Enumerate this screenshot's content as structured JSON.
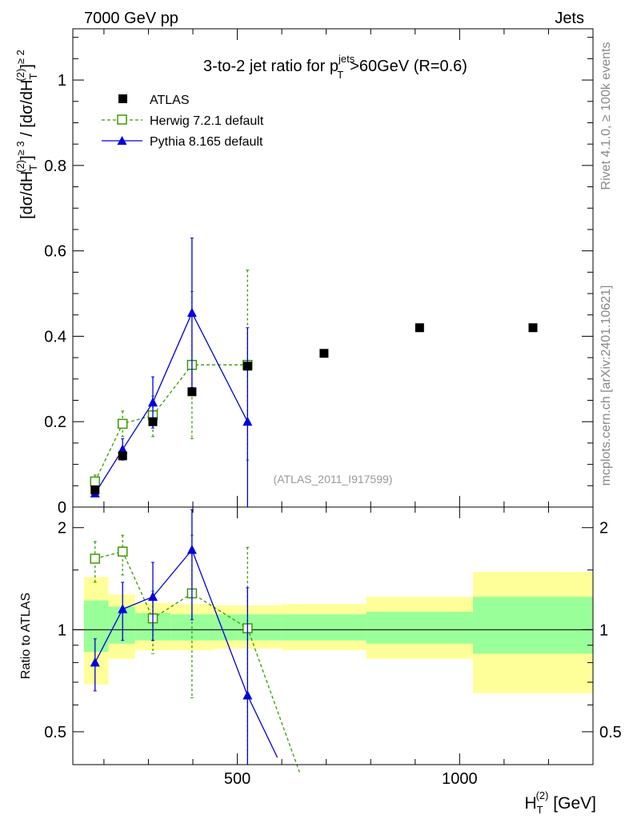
{
  "header": {
    "left": "7000 GeV pp",
    "right": "Jets"
  },
  "side_labels": {
    "rivet": "Rivet 4.1.0, ≥ 100k events",
    "mcplots": "mcplots.cern.ch [arXiv:2401.10621]"
  },
  "chart_data": [
    {
      "type": "scatter",
      "name": "main",
      "title": "3-to-2 jet ratio for p_T^jets > 60GeV (R=0.6)",
      "title_parts": {
        "a": "3-to-2 jet ratio for p",
        "sup": "jets",
        "sub": "T",
        "b": ">60GeV (R=0.6)"
      },
      "ylabel": "[dσ/dH_T^(2)]^≥3 / [dσ/dH_T^(2)]^≥2",
      "ylabel_parts": {
        "p1": "[dσ/dH",
        "sub": "T",
        "sup1": "(2)",
        "p2": "]",
        "sup2": "≥ 3",
        "p3": " / [dσ/dH",
        "p4": "]",
        "sup3": "≥ 2"
      },
      "xlim": [
        130,
        1300
      ],
      "ylim": [
        0,
        1.12
      ],
      "yticks": [
        0,
        0.2,
        0.4,
        0.6,
        0.8,
        1
      ],
      "ytick_labels": [
        "0",
        "0.2",
        "0.4",
        "0.6",
        "0.8",
        "1"
      ],
      "legend_position": "top-left",
      "watermark": "(ATLAS_2011_I917599)",
      "series": [
        {
          "name": "ATLAS",
          "style": "data",
          "color": "#000000",
          "marker": "filled-square",
          "points": [
            {
              "x": 180,
              "y": 0.04
            },
            {
              "x": 242,
              "y": 0.12
            },
            {
              "x": 310,
              "y": 0.2
            },
            {
              "x": 398,
              "y": 0.27
            },
            {
              "x": 523,
              "y": 0.33
            },
            {
              "x": 695,
              "y": 0.36
            },
            {
              "x": 910,
              "y": 0.42
            },
            {
              "x": 1165,
              "y": 0.42
            }
          ]
        },
        {
          "name": "Herwig 7.2.1 default",
          "style": "dashed",
          "color": "#3a9a00",
          "marker": "open-square",
          "points": [
            {
              "x": 180,
              "y": 0.06,
              "lo": 0.04,
              "hi": 0.075
            },
            {
              "x": 242,
              "y": 0.195,
              "lo": 0.165,
              "hi": 0.225
            },
            {
              "x": 310,
              "y": 0.215,
              "lo": 0.165,
              "hi": 0.26
            },
            {
              "x": 398,
              "y": 0.333,
              "lo": 0.16,
              "hi": 0.505
            },
            {
              "x": 523,
              "y": 0.333,
              "lo": 0.11,
              "hi": 0.555
            }
          ]
        },
        {
          "name": "Pythia 8.165 default",
          "style": "solid",
          "color": "#0000dd",
          "marker": "filled-triangle",
          "points": [
            {
              "x": 180,
              "y": 0.032,
              "lo": 0.025,
              "hi": 0.038
            },
            {
              "x": 242,
              "y": 0.135,
              "lo": 0.11,
              "hi": 0.16
            },
            {
              "x": 310,
              "y": 0.245,
              "lo": 0.185,
              "hi": 0.305
            },
            {
              "x": 398,
              "y": 0.455,
              "lo": 0.28,
              "hi": 0.63
            },
            {
              "x": 523,
              "y": 0.2,
              "lo": 0.0,
              "hi": 0.42
            }
          ]
        }
      ]
    },
    {
      "type": "scatter",
      "name": "ratio",
      "ylabel": "Ratio to ATLAS",
      "xlabel": "H_T^(2) [GeV]",
      "xlabel_parts": {
        "main": "H",
        "sub": "T",
        "sup": "(2)",
        "rest": " [GeV]"
      },
      "xlim": [
        130,
        1300
      ],
      "ylim": [
        0.4,
        2.3
      ],
      "yscale": "log",
      "yticks": [
        0.5,
        1,
        2
      ],
      "ytick_labels": [
        "0.5",
        "1",
        "2"
      ],
      "xticks": [
        500,
        1000
      ],
      "xtick_labels": [
        "500",
        "1000"
      ],
      "bands": [
        {
          "x0": 155,
          "x1": 210,
          "g_lo": 0.86,
          "g_hi": 1.22,
          "y_lo": 0.69,
          "y_hi": 1.43
        },
        {
          "x0": 210,
          "x1": 270,
          "g_lo": 0.91,
          "g_hi": 1.17,
          "y_lo": 0.82,
          "y_hi": 1.27
        },
        {
          "x0": 270,
          "x1": 350,
          "g_lo": 0.93,
          "g_hi": 1.12,
          "y_lo": 0.87,
          "y_hi": 1.2
        },
        {
          "x0": 350,
          "x1": 450,
          "g_lo": 0.93,
          "g_hi": 1.11,
          "y_lo": 0.87,
          "y_hi": 1.19
        },
        {
          "x0": 450,
          "x1": 600,
          "g_lo": 0.93,
          "g_hi": 1.11,
          "y_lo": 0.88,
          "y_hi": 1.18
        },
        {
          "x0": 600,
          "x1": 790,
          "g_lo": 0.93,
          "g_hi": 1.11,
          "y_lo": 0.87,
          "y_hi": 1.19
        },
        {
          "x0": 790,
          "x1": 1030,
          "g_lo": 0.91,
          "g_hi": 1.13,
          "y_lo": 0.82,
          "y_hi": 1.25
        },
        {
          "x0": 1030,
          "x1": 1300,
          "g_lo": 0.85,
          "g_hi": 1.25,
          "y_lo": 0.65,
          "y_hi": 1.48
        }
      ],
      "series": [
        {
          "name": "Herwig 7.2.1 default",
          "style": "dashed",
          "color": "#3a9a00",
          "marker": "open-square",
          "points": [
            {
              "x": 180,
              "y": 1.62,
              "lo": 1.38,
              "hi": 1.82
            },
            {
              "x": 242,
              "y": 1.7,
              "lo": 1.45,
              "hi": 1.9
            },
            {
              "x": 310,
              "y": 1.08,
              "lo": 0.85,
              "hi": 1.3
            },
            {
              "x": 398,
              "y": 1.28,
              "lo": 0.63,
              "hi": 1.9
            },
            {
              "x": 523,
              "y": 1.01,
              "lo": 0.34,
              "hi": 1.75
            }
          ],
          "tail": {
            "x": 640,
            "y": 0.38
          }
        },
        {
          "name": "Pythia 8.165 default",
          "style": "solid",
          "color": "#0000dd",
          "marker": "filled-triangle",
          "points": [
            {
              "x": 180,
              "y": 0.8,
              "lo": 0.66,
              "hi": 0.94
            },
            {
              "x": 242,
              "y": 1.15,
              "lo": 0.93,
              "hi": 1.38
            },
            {
              "x": 310,
              "y": 1.25,
              "lo": 0.93,
              "hi": 1.58
            },
            {
              "x": 398,
              "y": 1.72,
              "lo": 1.07,
              "hi": 2.26
            },
            {
              "x": 523,
              "y": 0.64,
              "lo": 0.3,
              "hi": 1.33
            }
          ],
          "tail": {
            "x": 590,
            "y": 0.42
          }
        }
      ]
    }
  ]
}
